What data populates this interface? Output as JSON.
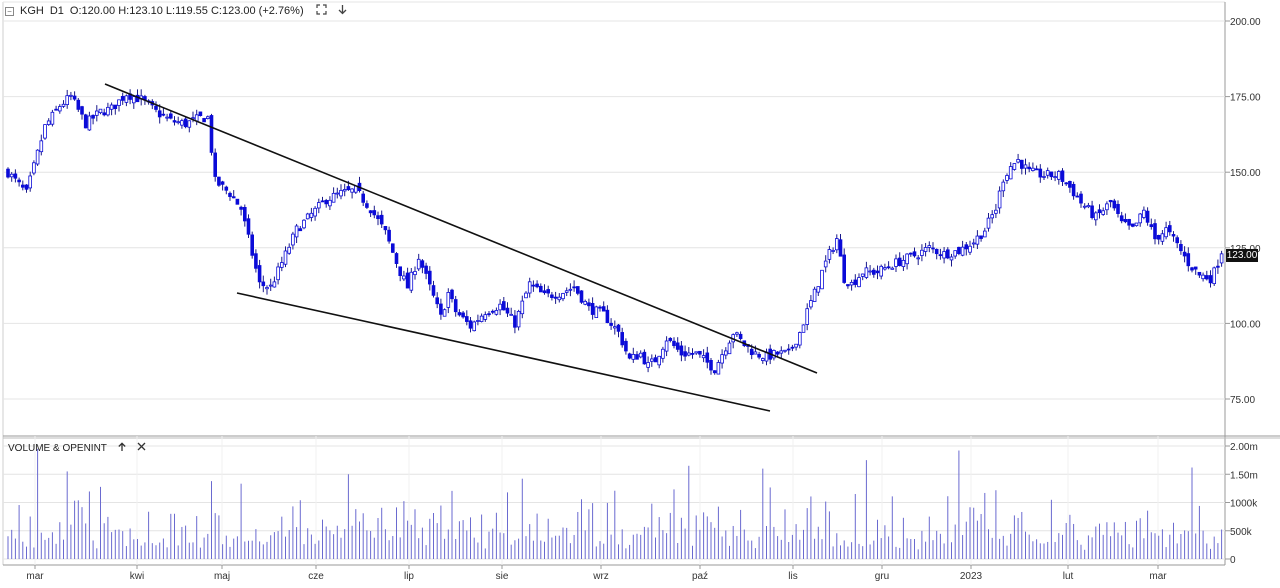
{
  "header": {
    "minimize_glyph": "−",
    "symbol": "KGH",
    "interval": "D1",
    "ohlc_text": "O:120.00 H:123.10 L:119.55 C:123.00 (+2.76%)",
    "icons": [
      "expand-icon",
      "download-arrow-icon"
    ]
  },
  "volume_panel": {
    "title": "VOLUME & OPENINT",
    "icons": [
      "move-up-icon",
      "close-icon"
    ]
  },
  "last_price_label": "123.00",
  "colors": {
    "candle": "#0b0bd8",
    "wick": "#1a1a8a",
    "volume_bar": "#6a6ad0",
    "trendline": "#111111",
    "grid": "#e4e4e4",
    "axis": "#999999"
  },
  "chart_data": [
    {
      "type": "candlestick",
      "title": "",
      "y_axis_ticks": [
        "200.00",
        "175.00",
        "150.00",
        "125.00",
        "100.00",
        "75.00"
      ],
      "ylim": [
        63,
        205
      ],
      "x_axis_labels": [
        "mar",
        "kwi",
        "maj",
        "cze",
        "lip",
        "sie",
        "wrz",
        "paź",
        "lis",
        "gru",
        "2023",
        "lut",
        "mar"
      ],
      "last_close": 123.0,
      "close_path_knots": [
        [
          0,
          150
        ],
        [
          5,
          143
        ],
        [
          10,
          165
        ],
        [
          14,
          172
        ],
        [
          17,
          175
        ],
        [
          21,
          166
        ],
        [
          25,
          170
        ],
        [
          28,
          171
        ],
        [
          32,
          176
        ],
        [
          36,
          174
        ],
        [
          40,
          170
        ],
        [
          44,
          167
        ],
        [
          48,
          166
        ],
        [
          52,
          168
        ],
        [
          54,
          168
        ],
        [
          56,
          147
        ],
        [
          60,
          143
        ],
        [
          63,
          138
        ],
        [
          65,
          128
        ],
        [
          68,
          113
        ],
        [
          71,
          112
        ],
        [
          74,
          120
        ],
        [
          78,
          131
        ],
        [
          82,
          136
        ],
        [
          86,
          141
        ],
        [
          90,
          143
        ],
        [
          94,
          144
        ],
        [
          98,
          138
        ],
        [
          102,
          130
        ],
        [
          106,
          117
        ],
        [
          108,
          112
        ],
        [
          111,
          122
        ],
        [
          114,
          112
        ],
        [
          117,
          102
        ],
        [
          119,
          110
        ],
        [
          121,
          104
        ],
        [
          125,
          99
        ],
        [
          129,
          104
        ],
        [
          133,
          106
        ],
        [
          137,
          100
        ],
        [
          141,
          113
        ],
        [
          145,
          109
        ],
        [
          149,
          110
        ],
        [
          153,
          112
        ],
        [
          157,
          105
        ],
        [
          161,
          103
        ],
        [
          165,
          97
        ],
        [
          168,
          88
        ],
        [
          171,
          90
        ],
        [
          173,
          86
        ],
        [
          175,
          88
        ],
        [
          178,
          95
        ],
        [
          182,
          90
        ],
        [
          186,
          90
        ],
        [
          189,
          87
        ],
        [
          191,
          85
        ],
        [
          193,
          90
        ],
        [
          196,
          97
        ],
        [
          199,
          93
        ],
        [
          202,
          90
        ],
        [
          205,
          89
        ],
        [
          208,
          90
        ],
        [
          211,
          90
        ],
        [
          214,
          97
        ],
        [
          216,
          104
        ],
        [
          218,
          110
        ],
        [
          220,
          117
        ],
        [
          222,
          123
        ],
        [
          224,
          128
        ],
        [
          226,
          115
        ],
        [
          228,
          113
        ],
        [
          231,
          117
        ],
        [
          235,
          117
        ],
        [
          238,
          119
        ],
        [
          242,
          121
        ],
        [
          246,
          123
        ],
        [
          249,
          125
        ],
        [
          253,
          123
        ],
        [
          257,
          124
        ],
        [
          261,
          127
        ],
        [
          264,
          131
        ],
        [
          267,
          138
        ],
        [
          269,
          148
        ],
        [
          271,
          152
        ],
        [
          273,
          154
        ],
        [
          276,
          150
        ],
        [
          280,
          149
        ],
        [
          284,
          149
        ],
        [
          287,
          145
        ],
        [
          290,
          140
        ],
        [
          294,
          135
        ],
        [
          298,
          140
        ],
        [
          301,
          133
        ],
        [
          304,
          131
        ],
        [
          307,
          137
        ],
        [
          310,
          128
        ],
        [
          313,
          131
        ],
        [
          316,
          126
        ],
        [
          319,
          120
        ],
        [
          322,
          116
        ],
        [
          325,
          115
        ],
        [
          326,
          117
        ],
        [
          328,
          123
        ]
      ]
    },
    {
      "type": "bar",
      "title": "VOLUME & OPENINT",
      "y_axis_ticks": [
        "2.00m",
        "1.50m",
        "1000k",
        "500k",
        "0"
      ],
      "ylim": [
        0,
        2000000
      ],
      "volume_spikes": [
        [
          8,
          1950000
        ],
        [
          16,
          1550000
        ],
        [
          92,
          1500000
        ],
        [
          184,
          1650000
        ],
        [
          204,
          1600000
        ],
        [
          232,
          1750000
        ],
        [
          257,
          1920000
        ],
        [
          320,
          1620000
        ]
      ]
    }
  ]
}
